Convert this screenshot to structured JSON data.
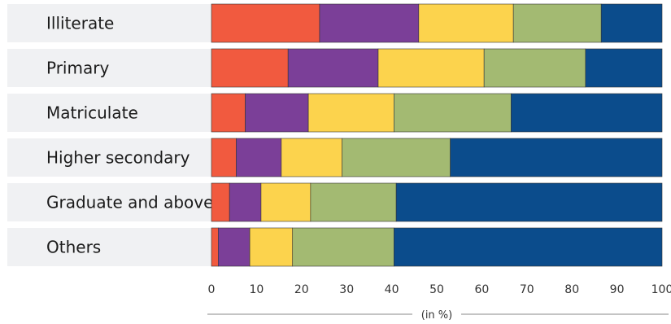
{
  "chart_data": {
    "type": "bar",
    "orientation": "horizontal",
    "stacked": true,
    "categories": [
      "Illiterate",
      "Primary",
      "Matriculate",
      "Higher secondary",
      "Graduate and above",
      "Others"
    ],
    "series": [
      {
        "color": "#f15a3f",
        "values": [
          24,
          17,
          7.5,
          5.5,
          4,
          1.5
        ]
      },
      {
        "color": "#7b3f98",
        "values": [
          22,
          20,
          14,
          10,
          7,
          7
        ]
      },
      {
        "color": "#fcd34d",
        "values": [
          21,
          23.5,
          19,
          13.5,
          11,
          9.5
        ]
      },
      {
        "color": "#a3ba72",
        "values": [
          19.5,
          22.5,
          26,
          24,
          19,
          22.5
        ]
      },
      {
        "color": "#0b4c8c",
        "values": [
          13.5,
          17,
          33.5,
          47,
          59,
          59.5
        ]
      }
    ],
    "x_ticks": [
      "0",
      "10",
      "20",
      "30",
      "40",
      "50",
      "60",
      "70",
      "80",
      "90",
      "100"
    ],
    "xlabel": "(in %)",
    "xlim": [
      0,
      100
    ],
    "grid": false
  }
}
